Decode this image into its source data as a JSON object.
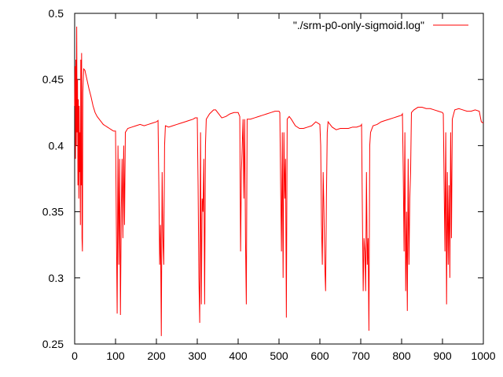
{
  "chart_data": {
    "type": "line",
    "title": "",
    "xlabel": "",
    "ylabel": "",
    "xlim": [
      0,
      1000
    ],
    "ylim": [
      0.25,
      0.5
    ],
    "x_ticks": [
      0,
      100,
      200,
      300,
      400,
      500,
      600,
      700,
      800,
      900,
      1000
    ],
    "y_ticks": [
      0.25,
      0.3,
      0.35,
      0.4,
      0.45,
      0.5
    ],
    "x_tick_labels": [
      "0",
      "100",
      "200",
      "300",
      "400",
      "500",
      "600",
      "700",
      "800",
      "900",
      "1000"
    ],
    "y_tick_labels": [
      "0.25",
      "0.3",
      "0.35",
      "0.4",
      "0.45",
      "0.5"
    ],
    "grid": false,
    "legend_position": "top-right",
    "series": [
      {
        "name": "\"./srm-p0-only-sigmoid.log\"",
        "color": "#ff0000",
        "points": [
          [
            0,
            0.43
          ],
          [
            1,
            0.46
          ],
          [
            2,
            0.39
          ],
          [
            3,
            0.465
          ],
          [
            4,
            0.4
          ],
          [
            5,
            0.49
          ],
          [
            6,
            0.41
          ],
          [
            7,
            0.45
          ],
          [
            8,
            0.37
          ],
          [
            9,
            0.435
          ],
          [
            10,
            0.36
          ],
          [
            11,
            0.43
          ],
          [
            12,
            0.38
          ],
          [
            13,
            0.41
          ],
          [
            14,
            0.34
          ],
          [
            15,
            0.465
          ],
          [
            16,
            0.37
          ],
          [
            17,
            0.47
          ],
          [
            18,
            0.33
          ],
          [
            19,
            0.32
          ],
          [
            20,
            0.44
          ],
          [
            22,
            0.458
          ],
          [
            25,
            0.457
          ],
          [
            30,
            0.45
          ],
          [
            35,
            0.443
          ],
          [
            40,
            0.437
          ],
          [
            45,
            0.43
          ],
          [
            50,
            0.425
          ],
          [
            55,
            0.422
          ],
          [
            60,
            0.42
          ],
          [
            65,
            0.418
          ],
          [
            70,
            0.416
          ],
          [
            75,
            0.415
          ],
          [
            80,
            0.414
          ],
          [
            85,
            0.413
          ],
          [
            90,
            0.412
          ],
          [
            95,
            0.411
          ],
          [
            100,
            0.411
          ],
          [
            102,
            0.34
          ],
          [
            104,
            0.273
          ],
          [
            106,
            0.4
          ],
          [
            108,
            0.31
          ],
          [
            110,
            0.39
          ],
          [
            112,
            0.272
          ],
          [
            114,
            0.35
          ],
          [
            116,
            0.39
          ],
          [
            118,
            0.33
          ],
          [
            120,
            0.4
          ],
          [
            122,
            0.34
          ],
          [
            124,
            0.41
          ],
          [
            130,
            0.413
          ],
          [
            140,
            0.414
          ],
          [
            150,
            0.415
          ],
          [
            160,
            0.416
          ],
          [
            170,
            0.415
          ],
          [
            180,
            0.416
          ],
          [
            190,
            0.417
          ],
          [
            200,
            0.418
          ],
          [
            204,
            0.419
          ],
          [
            206,
            0.37
          ],
          [
            208,
            0.31
          ],
          [
            210,
            0.34
          ],
          [
            212,
            0.256
          ],
          [
            214,
            0.38
          ],
          [
            216,
            0.33
          ],
          [
            218,
            0.31
          ],
          [
            220,
            0.4
          ],
          [
            222,
            0.415
          ],
          [
            230,
            0.414
          ],
          [
            240,
            0.415
          ],
          [
            250,
            0.416
          ],
          [
            260,
            0.417
          ],
          [
            270,
            0.418
          ],
          [
            280,
            0.419
          ],
          [
            290,
            0.42
          ],
          [
            295,
            0.421
          ],
          [
            300,
            0.421
          ],
          [
            302,
            0.37
          ],
          [
            304,
            0.3
          ],
          [
            306,
            0.266
          ],
          [
            308,
            0.41
          ],
          [
            310,
            0.28
          ],
          [
            312,
            0.36
          ],
          [
            314,
            0.35
          ],
          [
            316,
            0.39
          ],
          [
            318,
            0.28
          ],
          [
            320,
            0.4
          ],
          [
            322,
            0.42
          ],
          [
            330,
            0.424
          ],
          [
            340,
            0.427
          ],
          [
            345,
            0.427
          ],
          [
            350,
            0.425
          ],
          [
            360,
            0.421
          ],
          [
            370,
            0.422
          ],
          [
            380,
            0.424
          ],
          [
            390,
            0.425
          ],
          [
            400,
            0.425
          ],
          [
            404,
            0.422
          ],
          [
            406,
            0.32
          ],
          [
            408,
            0.38
          ],
          [
            410,
            0.4
          ],
          [
            412,
            0.42
          ],
          [
            414,
            0.36
          ],
          [
            416,
            0.42
          ],
          [
            418,
            0.33
          ],
          [
            420,
            0.28
          ],
          [
            422,
            0.42
          ],
          [
            430,
            0.42
          ],
          [
            440,
            0.421
          ],
          [
            450,
            0.422
          ],
          [
            460,
            0.423
          ],
          [
            470,
            0.424
          ],
          [
            480,
            0.425
          ],
          [
            490,
            0.426
          ],
          [
            500,
            0.426
          ],
          [
            502,
            0.425
          ],
          [
            504,
            0.37
          ],
          [
            506,
            0.32
          ],
          [
            508,
            0.41
          ],
          [
            510,
            0.3
          ],
          [
            512,
            0.41
          ],
          [
            514,
            0.36
          ],
          [
            516,
            0.39
          ],
          [
            518,
            0.27
          ],
          [
            520,
            0.42
          ],
          [
            525,
            0.422
          ],
          [
            530,
            0.42
          ],
          [
            540,
            0.415
          ],
          [
            550,
            0.413
          ],
          [
            560,
            0.413
          ],
          [
            570,
            0.414
          ],
          [
            580,
            0.415
          ],
          [
            590,
            0.418
          ],
          [
            600,
            0.416
          ],
          [
            602,
            0.4
          ],
          [
            604,
            0.34
          ],
          [
            606,
            0.31
          ],
          [
            608,
            0.38
          ],
          [
            610,
            0.35
          ],
          [
            612,
            0.31
          ],
          [
            614,
            0.29
          ],
          [
            616,
            0.36
          ],
          [
            618,
            0.41
          ],
          [
            620,
            0.418
          ],
          [
            630,
            0.414
          ],
          [
            640,
            0.412
          ],
          [
            650,
            0.413
          ],
          [
            660,
            0.413
          ],
          [
            670,
            0.413
          ],
          [
            680,
            0.414
          ],
          [
            690,
            0.414
          ],
          [
            700,
            0.415
          ],
          [
            702,
            0.416
          ],
          [
            704,
            0.35
          ],
          [
            706,
            0.29
          ],
          [
            708,
            0.33
          ],
          [
            710,
            0.32
          ],
          [
            712,
            0.29
          ],
          [
            714,
            0.38
          ],
          [
            716,
            0.31
          ],
          [
            718,
            0.33
          ],
          [
            720,
            0.26
          ],
          [
            722,
            0.4
          ],
          [
            724,
            0.41
          ],
          [
            730,
            0.415
          ],
          [
            740,
            0.416
          ],
          [
            750,
            0.418
          ],
          [
            760,
            0.419
          ],
          [
            770,
            0.42
          ],
          [
            780,
            0.421
          ],
          [
            790,
            0.422
          ],
          [
            800,
            0.423
          ],
          [
            802,
            0.424
          ],
          [
            804,
            0.38
          ],
          [
            806,
            0.32
          ],
          [
            808,
            0.41
          ],
          [
            810,
            0.29
          ],
          [
            812,
            0.35
          ],
          [
            814,
            0.275
          ],
          [
            816,
            0.39
          ],
          [
            818,
            0.31
          ],
          [
            820,
            0.36
          ],
          [
            822,
            0.38
          ],
          [
            824,
            0.425
          ],
          [
            830,
            0.427
          ],
          [
            840,
            0.429
          ],
          [
            850,
            0.429
          ],
          [
            860,
            0.428
          ],
          [
            870,
            0.428
          ],
          [
            880,
            0.427
          ],
          [
            890,
            0.426
          ],
          [
            900,
            0.425
          ],
          [
            902,
            0.424
          ],
          [
            904,
            0.37
          ],
          [
            906,
            0.32
          ],
          [
            908,
            0.41
          ],
          [
            910,
            0.28
          ],
          [
            912,
            0.38
          ],
          [
            914,
            0.31
          ],
          [
            916,
            0.37
          ],
          [
            918,
            0.3
          ],
          [
            920,
            0.41
          ],
          [
            922,
            0.33
          ],
          [
            924,
            0.42
          ],
          [
            930,
            0.427
          ],
          [
            940,
            0.428
          ],
          [
            950,
            0.427
          ],
          [
            960,
            0.426
          ],
          [
            970,
            0.426
          ],
          [
            980,
            0.427
          ],
          [
            990,
            0.426
          ],
          [
            995,
            0.418
          ],
          [
            1000,
            0.417
          ]
        ]
      }
    ]
  }
}
